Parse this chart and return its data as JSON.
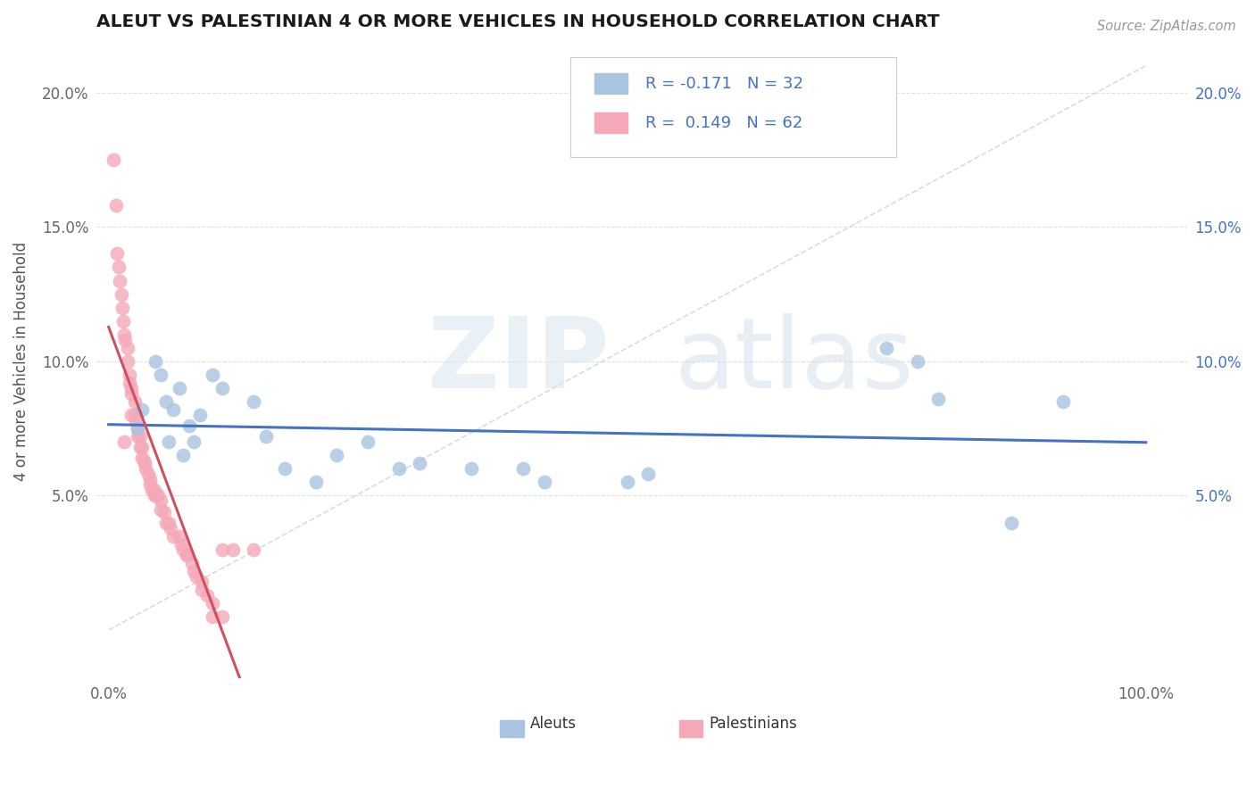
{
  "title": "ALEUT VS PALESTINIAN 4 OR MORE VEHICLES IN HOUSEHOLD CORRELATION CHART",
  "source_text": "Source: ZipAtlas.com",
  "ylabel": "4 or more Vehicles in Household",
  "aleut_R": -0.171,
  "aleut_N": 32,
  "palestinian_R": 0.149,
  "palestinian_N": 62,
  "aleut_color": "#a8c4e0",
  "aleut_line_color": "#4472c4",
  "palestinian_color": "#f4a8b8",
  "palestinian_line_color": "#d05060",
  "text_color_blue": "#4472c4",
  "aleut_x": [
    0.028,
    0.032,
    0.045,
    0.05,
    0.055,
    0.058,
    0.062,
    0.068,
    0.072,
    0.078,
    0.082,
    0.088,
    0.1,
    0.11,
    0.14,
    0.152,
    0.17,
    0.2,
    0.22,
    0.25,
    0.28,
    0.3,
    0.35,
    0.4,
    0.42,
    0.5,
    0.52,
    0.75,
    0.78,
    0.8,
    0.87,
    0.92
  ],
  "aleut_y": [
    0.075,
    0.082,
    0.1,
    0.095,
    0.085,
    0.07,
    0.082,
    0.09,
    0.065,
    0.076,
    0.07,
    0.08,
    0.095,
    0.09,
    0.085,
    0.072,
    0.06,
    0.055,
    0.065,
    0.07,
    0.06,
    0.062,
    0.06,
    0.06,
    0.055,
    0.055,
    0.058,
    0.105,
    0.1,
    0.086,
    0.04,
    0.085
  ],
  "palestinian_x": [
    0.005,
    0.007,
    0.008,
    0.01,
    0.011,
    0.012,
    0.013,
    0.014,
    0.015,
    0.016,
    0.018,
    0.018,
    0.02,
    0.02,
    0.022,
    0.022,
    0.025,
    0.025,
    0.026,
    0.028,
    0.028,
    0.03,
    0.03,
    0.032,
    0.032,
    0.034,
    0.035,
    0.036,
    0.038,
    0.04,
    0.04,
    0.042,
    0.044,
    0.044,
    0.046,
    0.048,
    0.05,
    0.05,
    0.054,
    0.055,
    0.058,
    0.06,
    0.062,
    0.068,
    0.07,
    0.072,
    0.075,
    0.076,
    0.08,
    0.082,
    0.085,
    0.09,
    0.09,
    0.095,
    0.1,
    0.1,
    0.11,
    0.11,
    0.12,
    0.14,
    0.015,
    0.022
  ],
  "palestinian_y": [
    0.175,
    0.158,
    0.14,
    0.135,
    0.13,
    0.125,
    0.12,
    0.115,
    0.11,
    0.108,
    0.105,
    0.1,
    0.095,
    0.092,
    0.09,
    0.088,
    0.085,
    0.08,
    0.078,
    0.075,
    0.072,
    0.072,
    0.068,
    0.068,
    0.064,
    0.063,
    0.062,
    0.06,
    0.058,
    0.056,
    0.054,
    0.052,
    0.052,
    0.05,
    0.05,
    0.05,
    0.048,
    0.045,
    0.044,
    0.04,
    0.04,
    0.038,
    0.035,
    0.035,
    0.032,
    0.03,
    0.028,
    0.028,
    0.025,
    0.022,
    0.02,
    0.018,
    0.015,
    0.013,
    0.01,
    0.005,
    0.005,
    0.03,
    0.03,
    0.03,
    0.07,
    0.08
  ],
  "ytick_pos": [
    0.05,
    0.1,
    0.15,
    0.2
  ],
  "ytick_labels": [
    "5.0%",
    "10.0%",
    "15.0%",
    "20.0%"
  ],
  "xtick_pos": [
    0.0,
    1.0
  ],
  "xtick_labels": [
    "0.0%",
    "100.0%"
  ],
  "xlim": [
    -0.012,
    1.04
  ],
  "ylim": [
    -0.018,
    0.218
  ]
}
